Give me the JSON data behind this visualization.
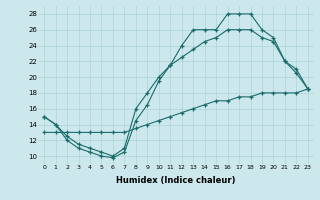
{
  "xlabel": "Humidex (Indice chaleur)",
  "background_color": "#cce8ec",
  "grid_color": "#aad4d8",
  "line_color": "#1a6b6b",
  "xlim": [
    -0.5,
    23.5
  ],
  "ylim": [
    9,
    29
  ],
  "yticks": [
    10,
    12,
    14,
    16,
    18,
    20,
    22,
    24,
    26,
    28
  ],
  "xticks": [
    0,
    1,
    2,
    3,
    4,
    5,
    6,
    7,
    8,
    9,
    10,
    11,
    12,
    13,
    14,
    15,
    16,
    17,
    18,
    19,
    20,
    21,
    22,
    23
  ],
  "series_max": [
    15,
    14,
    12,
    11,
    10.5,
    10,
    9.8,
    10.5,
    14.5,
    16.5,
    19.5,
    21.5,
    24,
    26,
    26,
    26,
    28,
    28,
    28,
    26,
    25,
    22,
    20.5,
    18.5
  ],
  "series_mid": [
    15,
    14,
    12.5,
    11.5,
    11,
    10.5,
    10,
    11,
    16,
    18,
    20,
    21.5,
    22.5,
    23.5,
    24.5,
    25,
    26,
    26,
    26,
    25,
    24.5,
    22,
    21,
    18.5
  ],
  "series_min": [
    13,
    13,
    13,
    13,
    13,
    13,
    13,
    13,
    13.5,
    14,
    14.5,
    15,
    15.5,
    16,
    16.5,
    17,
    17,
    17.5,
    17.5,
    18,
    18,
    18,
    18,
    18.5
  ]
}
